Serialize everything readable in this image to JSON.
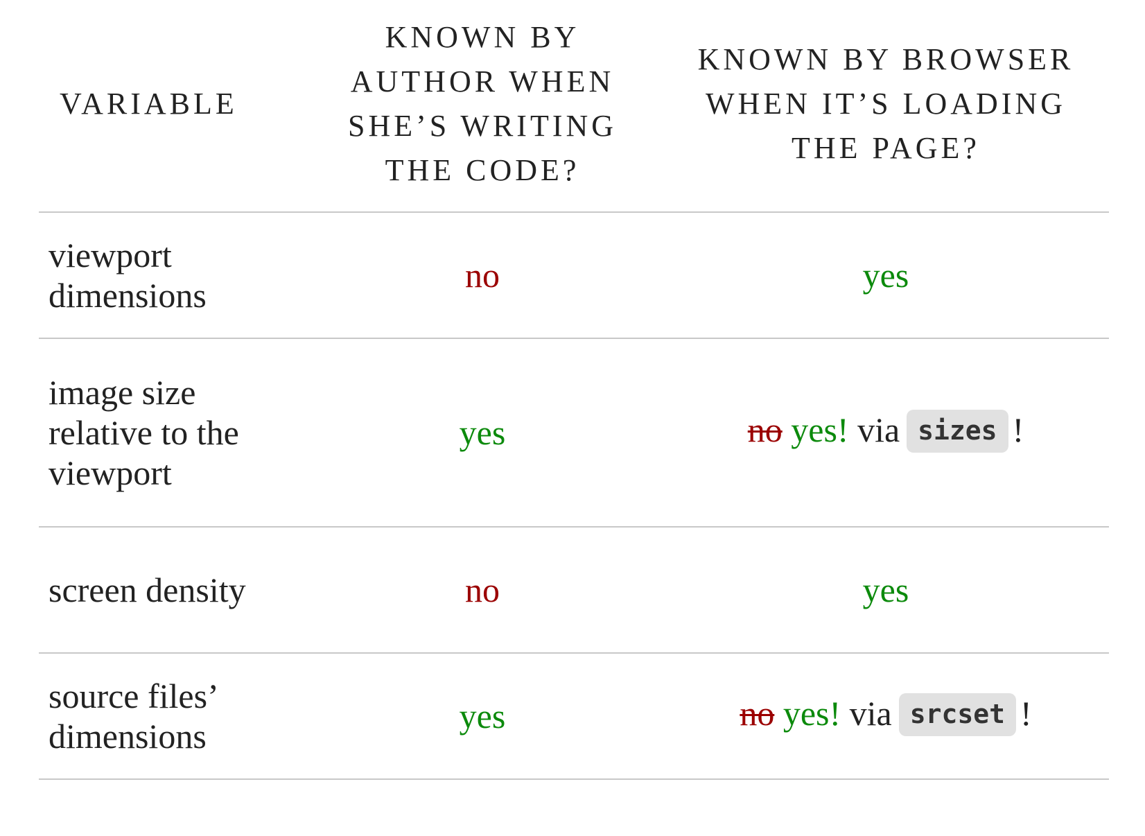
{
  "table": {
    "headers": {
      "variable": "Variable",
      "author": "Known by author when she’s writing the code?",
      "browser": "Known by browser when it’s loading the page?"
    },
    "rows": [
      {
        "variable": "viewport dimensions",
        "author": "no",
        "browser": "yes"
      },
      {
        "variable": "image size relative to the viewport",
        "author": "yes",
        "browser_struck": "no",
        "browser_yes": "yes!",
        "browser_via": "via",
        "browser_code": "sizes",
        "browser_end": "!"
      },
      {
        "variable": "screen density",
        "author": "no",
        "browser": "yes"
      },
      {
        "variable": "source files’ dimensions",
        "author": "yes",
        "browser_struck": "no",
        "browser_yes": "yes!",
        "browser_via": "via",
        "browser_code": "srcset",
        "browser_end": "!"
      }
    ]
  },
  "colors": {
    "no": "#9b0000",
    "yes": "#0c8a0c",
    "text": "#222222",
    "rule": "#c8c8c8",
    "code_bg": "#e1e1e1"
  }
}
